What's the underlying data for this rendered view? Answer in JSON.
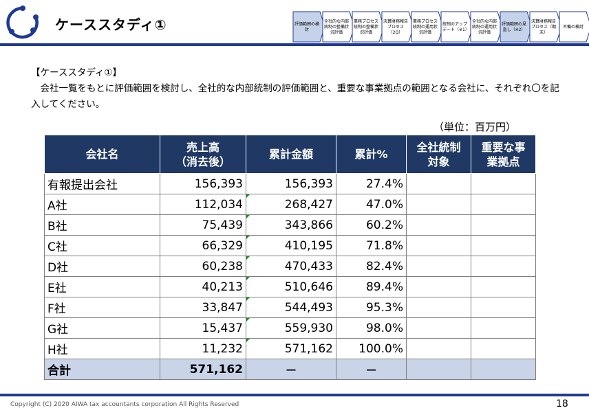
{
  "header": {
    "title": "ケーススタディ①",
    "steps": [
      {
        "label": "評価範囲の検討",
        "active": true
      },
      {
        "label": "全社的な内部統制の整備状況評価",
        "active": false
      },
      {
        "label": "業務プロセス統制の整備状況評価",
        "active": false
      },
      {
        "label": "決算財務報告プロセス（2Q）",
        "active": false
      },
      {
        "label": "業務プロセス統制の運用状況評価",
        "active": false
      },
      {
        "label": "統制のアップデート（※1）",
        "active": false
      },
      {
        "label": "全社的な内部統制の運用状況評価",
        "active": false
      },
      {
        "label": "評価範囲の見直し（※2）",
        "active": true
      },
      {
        "label": "決算財務報告プロセス（期末）",
        "active": false
      },
      {
        "label": "不備の検討",
        "active": false
      }
    ],
    "colors": {
      "brand": "#1f3a93",
      "step_active": "#c5d3ea",
      "step_border": "#1f3a93"
    }
  },
  "body": {
    "case_label": "【ケーススタディ①】",
    "paragraph": "　会社一覧をもとに評価範囲を検討し、全社的な内部統制の評価範囲と、重要な事業拠点の範囲となる会社に、それぞれ〇を記入してください。",
    "unit": "（単位：百万円）"
  },
  "table": {
    "headers": [
      "会社名",
      "売上高\n（消去後）",
      "累計金額",
      "累計%",
      "全社統制\n対象",
      "重要な事\n業拠点"
    ],
    "rows": [
      {
        "name": "有報提出会社",
        "sales": "156,393",
        "cumulative": "156,393",
        "percent": "27.4%",
        "companywide": "",
        "key_location": ""
      },
      {
        "name": "A社",
        "sales": "112,034",
        "cumulative": "268,427",
        "percent": "47.0%",
        "companywide": "",
        "key_location": ""
      },
      {
        "name": "B社",
        "sales": "75,439",
        "cumulative": "343,866",
        "percent": "60.2%",
        "companywide": "",
        "key_location": ""
      },
      {
        "name": "C社",
        "sales": "66,329",
        "cumulative": "410,195",
        "percent": "71.8%",
        "companywide": "",
        "key_location": ""
      },
      {
        "name": "D社",
        "sales": "60,238",
        "cumulative": "470,433",
        "percent": "82.4%",
        "companywide": "",
        "key_location": ""
      },
      {
        "name": "E社",
        "sales": "40,213",
        "cumulative": "510,646",
        "percent": "89.4%",
        "companywide": "",
        "key_location": ""
      },
      {
        "name": "F社",
        "sales": "33,847",
        "cumulative": "544,493",
        "percent": "95.3%",
        "companywide": "",
        "key_location": ""
      },
      {
        "name": "G社",
        "sales": "15,437",
        "cumulative": "559,930",
        "percent": "98.0%",
        "companywide": "",
        "key_location": ""
      },
      {
        "name": "H社",
        "sales": "11,232",
        "cumulative": "571,162",
        "percent": "100.0%",
        "companywide": "",
        "key_location": ""
      }
    ],
    "total": {
      "name": "合計",
      "sales": "571,162",
      "cumulative": "－",
      "percent": "－",
      "companywide": "",
      "key_location": ""
    },
    "colors": {
      "header_bg": "#1f3864",
      "total_bg": "#c9d4e8",
      "marker": "#1a8f1a"
    }
  },
  "footer": {
    "copyright": "Copyright (C) 2020 AIWA tax accountants corporation All Rights Reserved",
    "page_number": "18"
  }
}
